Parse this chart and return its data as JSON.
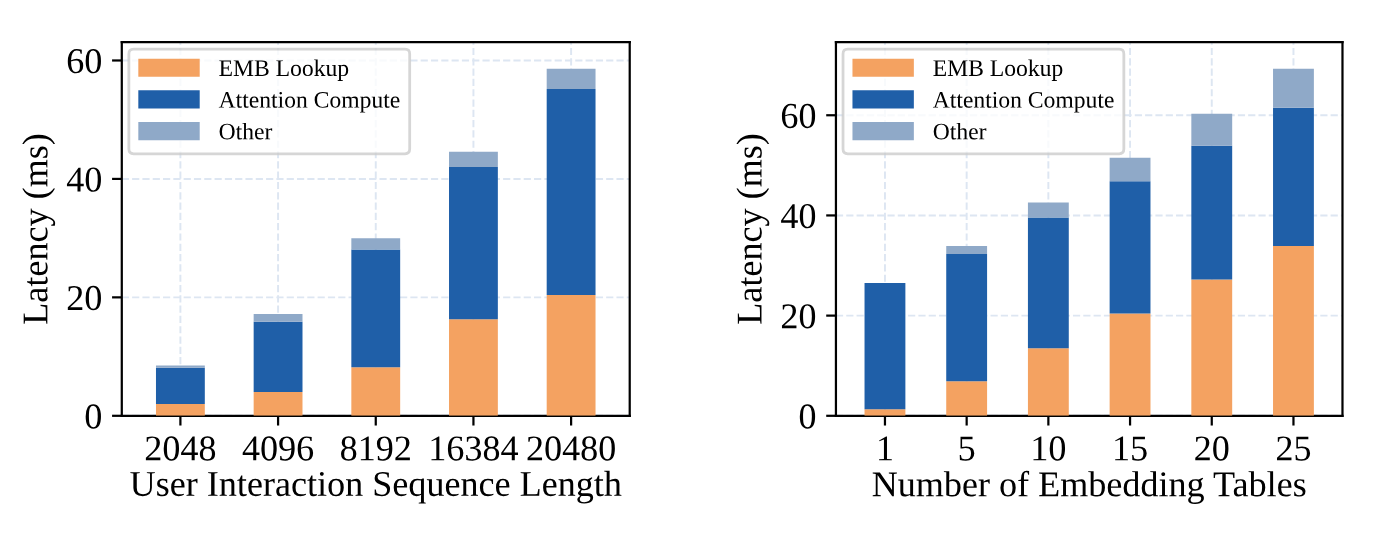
{
  "chart_data": [
    {
      "type": "bar",
      "stacked": true,
      "xlabel": "User Interaction Sequence Length",
      "ylabel": "Latency (ms)",
      "categories": [
        "2048",
        "4096",
        "8192",
        "16384",
        "20480"
      ],
      "ylim": [
        0,
        63.1
      ],
      "yticks": [
        0,
        20,
        40,
        60
      ],
      "grid": true,
      "legend": "top left",
      "series": [
        {
          "name": "EMB Lookup",
          "color": "#f4a261",
          "values": [
            2.0,
            4.0,
            8.2,
            16.3,
            20.4
          ]
        },
        {
          "name": "Attention Compute",
          "color": "#1f5fa8",
          "values": [
            6.1,
            11.9,
            19.9,
            25.7,
            34.8
          ]
        },
        {
          "name": "Other",
          "color": "#8fa9c8",
          "values": [
            0.4,
            1.3,
            1.9,
            2.6,
            3.4
          ]
        }
      ]
    },
    {
      "type": "bar",
      "stacked": true,
      "xlabel": "Number of Embedding Tables",
      "ylabel": "Latency (ms)",
      "categories": [
        "1",
        "5",
        "10",
        "15",
        "20",
        "25"
      ],
      "ylim": [
        0,
        74.6
      ],
      "yticks": [
        0,
        20,
        40,
        60
      ],
      "grid": true,
      "legend": "top left",
      "series": [
        {
          "name": "EMB Lookup",
          "color": "#f4a261",
          "values": [
            1.3,
            6.9,
            13.5,
            20.4,
            27.2,
            33.9
          ]
        },
        {
          "name": "Attention Compute",
          "color": "#1f5fa8",
          "values": [
            25.2,
            25.4,
            26.1,
            26.4,
            26.7,
            27.6
          ]
        },
        {
          "name": "Other",
          "color": "#8fa9c8",
          "values": [
            0,
            1.6,
            3.0,
            4.7,
            6.4,
            7.8
          ]
        }
      ]
    }
  ]
}
